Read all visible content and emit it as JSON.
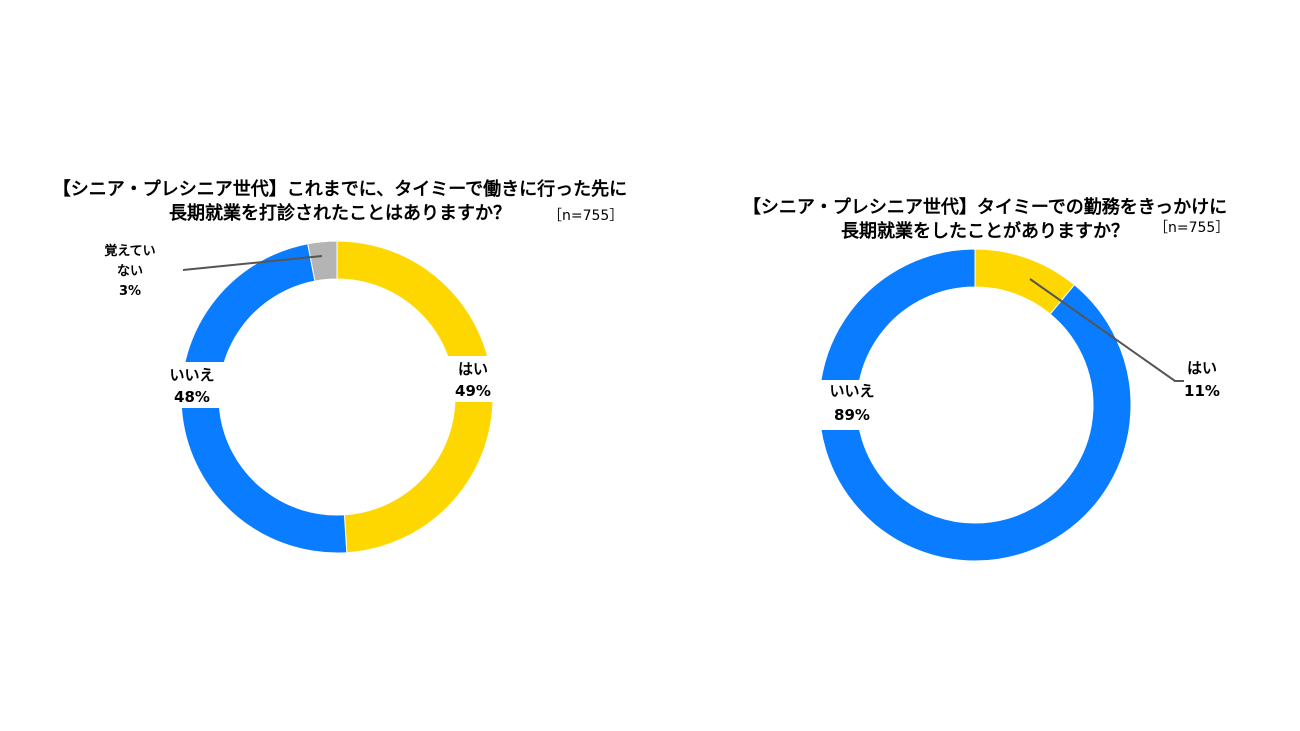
{
  "chart_data": [
    {
      "type": "pie",
      "title_line1": "【シニア・プレシニア世代】これまでに、タイミーで働きに行った先に",
      "title_line2": "長期就業を打診されたことはありますか？",
      "sample_size": "［n=755］",
      "slices": [
        {
          "label": "はい",
          "value": 49,
          "value_text": "49%",
          "color": "#FFD700"
        },
        {
          "label": "いいえ",
          "value": 48,
          "value_text": "48%",
          "color": "#0A7CFF"
        },
        {
          "label_line1": "覚えてい",
          "label_line2": "ない",
          "value": 3,
          "value_text": "3%",
          "color": "#B4B4B4"
        }
      ]
    },
    {
      "type": "pie",
      "title_line1": "【シニア・プレシニア世代】タイミーでの勤務をきっかけに",
      "title_line2": "長期就業をしたことがありますか？",
      "sample_size": "［n=755］",
      "slices": [
        {
          "label": "はい",
          "value": 11,
          "value_text": "11%",
          "color": "#FFD700"
        },
        {
          "label": "いいえ",
          "value": 89,
          "value_text": "89%",
          "color": "#0A7CFF"
        }
      ]
    }
  ]
}
